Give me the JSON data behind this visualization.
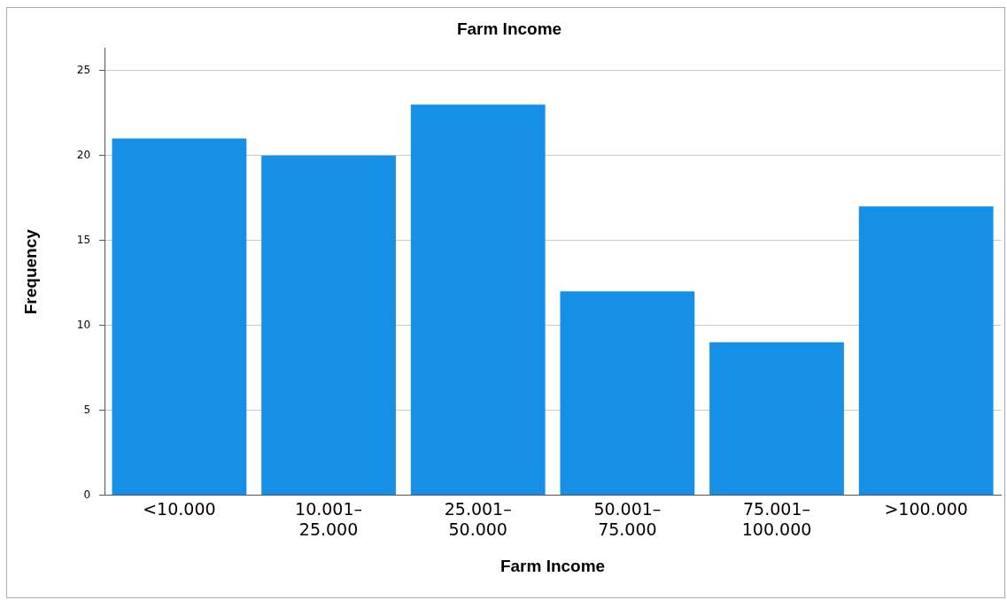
{
  "chart_data": {
    "type": "bar",
    "title": "Farm Income",
    "xlabel": "Farm Income",
    "ylabel": "Frequency",
    "categories": [
      "<10.000",
      "10.001–25.000",
      "25.001–50.000",
      "50.001–75.000",
      "75.001–100.000",
      ">100.000"
    ],
    "values": [
      21,
      20,
      23,
      12,
      9,
      17
    ],
    "color": "#1590e6",
    "ylim": [
      0,
      26.3
    ],
    "yticks": [
      0,
      5,
      10,
      15,
      20,
      25
    ],
    "grid": "y",
    "legend": false
  }
}
